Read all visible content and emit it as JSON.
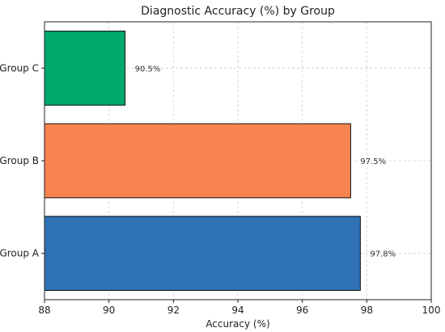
{
  "chart_data": {
    "type": "bar",
    "orientation": "horizontal",
    "title": "Diagnostic Accuracy (%) by Group",
    "xlabel": "Accuracy (%)",
    "ylabel": "",
    "categories": [
      "Group A",
      "Group B",
      "Group C"
    ],
    "values": [
      97.8,
      97.5,
      90.5
    ],
    "data_labels": [
      "97.8%",
      "97.5%",
      "90.5%"
    ],
    "colors": [
      "#2f72b5",
      "#f7844f",
      "#00a86b"
    ],
    "xlim": [
      88,
      100
    ],
    "xticks": [
      88,
      90,
      92,
      94,
      96,
      98,
      100
    ],
    "xtick_labels": [
      "88",
      "90",
      "92",
      "94",
      "96",
      "98",
      "100"
    ],
    "grid": true,
    "grid_style": "dashed",
    "legend": "none"
  }
}
